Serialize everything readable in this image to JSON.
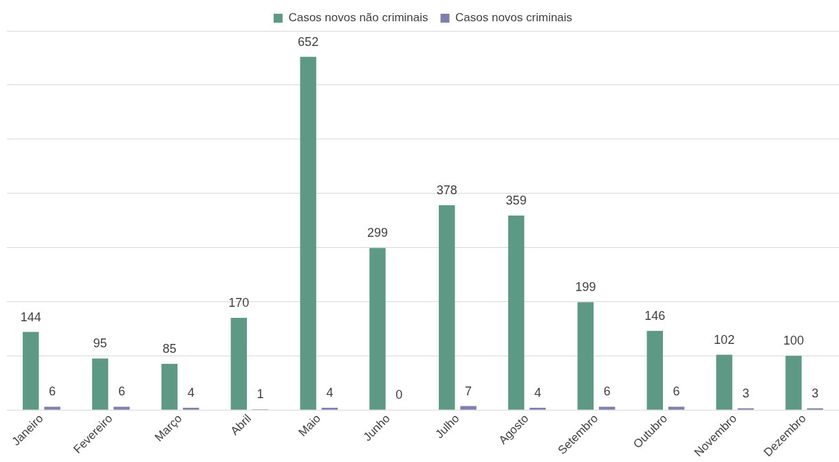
{
  "chart_data": {
    "type": "bar",
    "categories": [
      "Janeiro",
      "Fevereiro",
      "Março",
      "Abril",
      "Maio",
      "Junho",
      "Julho",
      "Agosto",
      "Setembro",
      "Outubro",
      "Novembro",
      "Dezembro"
    ],
    "series": [
      {
        "name": "Casos novos não criminais",
        "color": "#5e9985",
        "values": [
          144,
          95,
          85,
          170,
          652,
          299,
          378,
          359,
          199,
          146,
          102,
          100
        ]
      },
      {
        "name": "Casos novos criminais",
        "color": "#7f7fae",
        "values": [
          6,
          6,
          4,
          1,
          4,
          0,
          7,
          4,
          6,
          6,
          3,
          3
        ]
      }
    ],
    "ylim": [
      0,
      700
    ],
    "grid": "y",
    "tick_labels": "x",
    "legend": "top",
    "data_labels": true
  }
}
